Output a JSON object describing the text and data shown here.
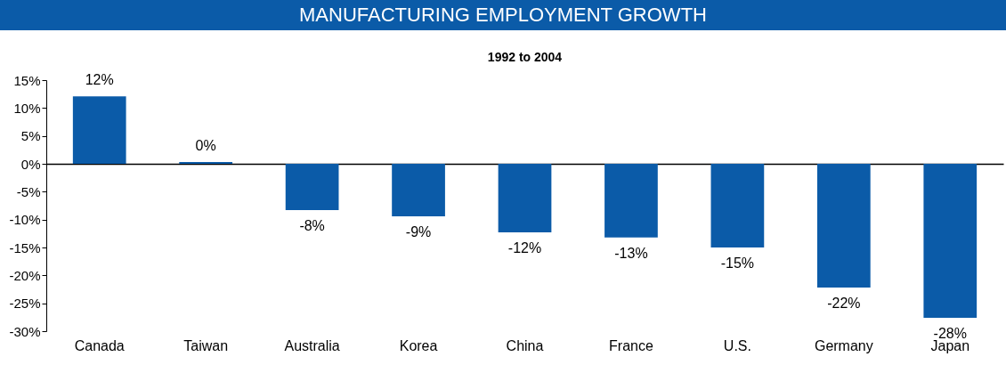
{
  "chart_data": {
    "type": "bar",
    "title": "MANUFACTURING EMPLOYMENT GROWTH",
    "subtitle": "1992 to 2004",
    "categories": [
      "Canada",
      "Taiwan",
      "Australia",
      "Korea",
      "China",
      "France",
      "U.S.",
      "Germany",
      "Japan"
    ],
    "values": [
      12.1,
      0.3,
      -8.3,
      -9.4,
      -12.3,
      -13.2,
      -15.0,
      -22.2,
      -27.6
    ],
    "value_labels": [
      "12%",
      "0%",
      "-8%",
      "-9%",
      "-12%",
      "-13%",
      "-15%",
      "-22%",
      "-28%"
    ],
    "color": "#0b5ba8",
    "ylim": [
      -30,
      15
    ],
    "yticks": [
      {
        "value": 15,
        "label": "15%"
      },
      {
        "value": 10,
        "label": "10%"
      },
      {
        "value": 5,
        "label": "5%"
      },
      {
        "value": 0,
        "label": "0%"
      },
      {
        "value": -5,
        "label": "-5%"
      },
      {
        "value": -10,
        "label": "-10%"
      },
      {
        "value": -15,
        "label": "-15%"
      },
      {
        "value": -20,
        "label": "-20%"
      },
      {
        "value": -25,
        "label": "-25%"
      },
      {
        "value": -30,
        "label": "-30%"
      }
    ]
  }
}
